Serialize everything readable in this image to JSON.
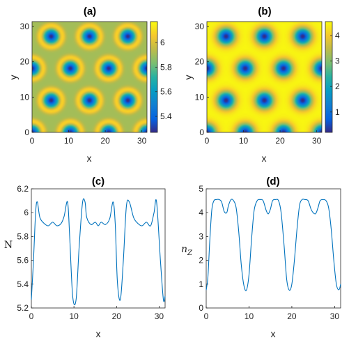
{
  "chart_data": [
    {
      "panel": "(a)",
      "type": "heatmap",
      "title": "(a)",
      "xlabel": "x",
      "ylabel": "y",
      "xlim": [
        0,
        31.4
      ],
      "ylim": [
        0,
        31.4
      ],
      "xticks": [
        "0",
        "10",
        "20",
        "30"
      ],
      "yticks": [
        "0",
        "10",
        "20",
        "30"
      ],
      "colorbar": {
        "range": [
          5.27,
          6.17
        ],
        "ticks": [
          "5.4",
          "5.6",
          "5.8",
          "6"
        ],
        "tick_values": [
          5.4,
          5.6,
          5.8,
          6.0
        ]
      },
      "pattern": {
        "lattice": "hexagonal",
        "spacing": 10.47,
        "min_value": 5.27,
        "background_value": 5.9,
        "ring_value": 6.1
      },
      "colormap": "parula"
    },
    {
      "panel": "(b)",
      "type": "heatmap",
      "title": "(b)",
      "xlabel": "x",
      "ylabel": "y",
      "xlim": [
        0,
        31.4
      ],
      "ylim": [
        0,
        31.4
      ],
      "xticks": [
        "0",
        "10",
        "20",
        "30"
      ],
      "yticks": [
        "0",
        "10",
        "20",
        "30"
      ],
      "colorbar": {
        "range": [
          0.2,
          4.55
        ],
        "ticks": [
          "1",
          "2",
          "3",
          "4"
        ],
        "tick_values": [
          1,
          2,
          3,
          4
        ]
      },
      "pattern": {
        "lattice": "hexagonal",
        "spacing": 10.47,
        "min_value": 0.2,
        "background_value": 4.5
      },
      "colormap": "parula"
    },
    {
      "panel": "(c)",
      "type": "line",
      "title": "(c)",
      "xlabel": "x",
      "ylabel": "N",
      "xlim": [
        0,
        31.4
      ],
      "ylim": [
        5.2,
        6.2
      ],
      "xticks": [
        0,
        10,
        20,
        30
      ],
      "yticks": [
        5.2,
        5.4,
        5.6,
        5.8,
        6.0,
        6.2
      ],
      "ytick_labels": [
        "5.2",
        "5.4",
        "5.6",
        "5.8",
        "6",
        "6.2"
      ],
      "color": "#0072bd",
      "x": [
        0,
        0.5,
        1.0,
        1.4,
        2.0,
        3.0,
        4.0,
        5.0,
        6.0,
        7.0,
        7.7,
        8.5,
        9.0,
        9.7,
        10.5,
        11.2,
        12.0,
        12.6,
        13.0,
        14.0,
        15.0,
        15.7,
        16.4,
        17.4,
        18.4,
        19.2,
        19.7,
        20.2,
        20.9,
        21.6,
        22.3,
        23.0,
        24.0,
        25.0,
        26.0,
        27.0,
        28.0,
        28.8,
        29.4,
        30.3,
        31.0,
        31.4
      ],
      "y": [
        5.27,
        5.6,
        6.0,
        6.09,
        5.96,
        5.91,
        5.89,
        5.92,
        5.89,
        5.91,
        5.97,
        6.09,
        5.8,
        5.3,
        5.27,
        5.7,
        6.08,
        6.09,
        5.96,
        5.9,
        5.92,
        5.89,
        5.92,
        5.9,
        5.95,
        6.09,
        5.9,
        5.42,
        5.27,
        5.6,
        6.05,
        6.09,
        5.96,
        5.91,
        5.89,
        5.92,
        5.89,
        6.0,
        6.09,
        5.6,
        5.27,
        5.3
      ]
    },
    {
      "panel": "(d)",
      "type": "line",
      "title": "(d)",
      "xlabel": "x",
      "ylabel": "n",
      "ylabel_sub": "Z",
      "xlim": [
        0,
        31.4
      ],
      "ylim": [
        0,
        5
      ],
      "xticks": [
        0,
        10,
        20,
        30
      ],
      "yticks": [
        0,
        1,
        2,
        3,
        4,
        5
      ],
      "color": "#0072bd",
      "x": [
        0,
        0.4,
        0.8,
        1.3,
        1.8,
        2.4,
        3.0,
        3.6,
        4.2,
        4.8,
        5.2,
        5.8,
        6.4,
        7.0,
        7.6,
        8.2,
        8.8,
        9.4,
        10.0,
        10.6,
        11.2,
        11.9,
        12.6,
        13.3,
        14.0,
        14.5,
        15.0,
        15.5,
        16.2,
        16.9,
        17.5,
        18.2,
        18.8,
        19.4,
        20.0,
        20.6,
        21.2,
        21.8,
        22.4,
        23.0,
        23.8,
        24.6,
        25.5,
        26.1,
        26.6,
        27.3,
        28.0,
        28.6,
        29.2,
        29.8,
        30.4,
        31.0,
        31.4
      ],
      "y": [
        0.75,
        1.3,
        2.7,
        4.1,
        4.5,
        4.55,
        4.55,
        4.45,
        4.05,
        4.0,
        4.3,
        4.55,
        4.5,
        4.2,
        3.2,
        1.8,
        0.95,
        0.75,
        1.4,
        2.9,
        4.1,
        4.5,
        4.55,
        4.5,
        4.1,
        3.95,
        4.15,
        4.5,
        4.55,
        4.5,
        4.0,
        2.6,
        1.2,
        0.75,
        1.0,
        2.0,
        3.3,
        4.3,
        4.55,
        4.55,
        4.5,
        4.1,
        3.95,
        4.2,
        4.5,
        4.55,
        4.5,
        4.2,
        3.3,
        2.0,
        1.0,
        0.76,
        1.0
      ]
    }
  ]
}
